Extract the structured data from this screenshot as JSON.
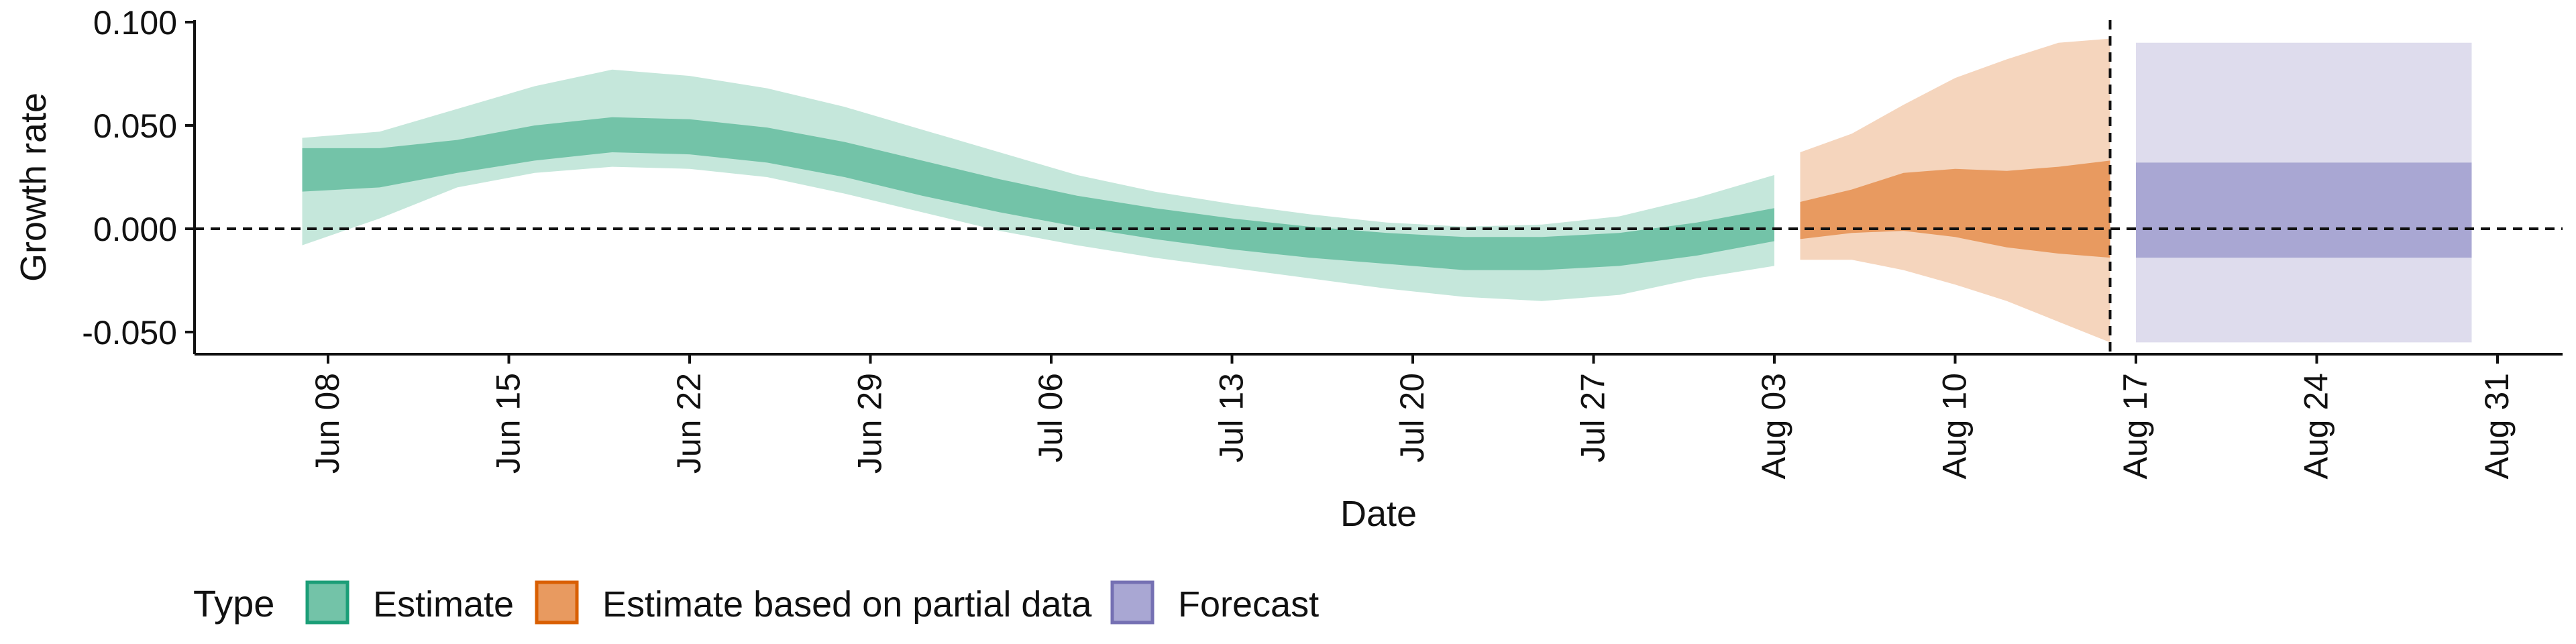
{
  "chart_data": {
    "type": "area",
    "title": "",
    "xlabel": "Date",
    "ylabel": "Growth rate",
    "ylim": [
      -0.062,
      0.1
    ],
    "xlim": [
      "2020-06-04",
      "2020-09-01"
    ],
    "y_ticks": [
      {
        "value": 0.1,
        "label": "0.100"
      },
      {
        "value": 0.05,
        "label": "0.050"
      },
      {
        "value": 0.0,
        "label": "0.000"
      },
      {
        "value": -0.05,
        "label": "-0.050"
      }
    ],
    "x_ticks": [
      {
        "date": "2020-06-08",
        "label": "Jun 08"
      },
      {
        "date": "2020-06-15",
        "label": "Jun 15"
      },
      {
        "date": "2020-06-22",
        "label": "Jun 22"
      },
      {
        "date": "2020-06-29",
        "label": "Jun 29"
      },
      {
        "date": "2020-07-06",
        "label": "Jul 06"
      },
      {
        "date": "2020-07-13",
        "label": "Jul 13"
      },
      {
        "date": "2020-07-20",
        "label": "Jul 20"
      },
      {
        "date": "2020-07-27",
        "label": "Jul 27"
      },
      {
        "date": "2020-08-03",
        "label": "Aug 03"
      },
      {
        "date": "2020-08-10",
        "label": "Aug 10"
      },
      {
        "date": "2020-08-17",
        "label": "Aug 17"
      },
      {
        "date": "2020-08-24",
        "label": "Aug 24"
      },
      {
        "date": "2020-08-31",
        "label": "Aug 31"
      }
    ],
    "reference_lines": {
      "horizontal_y": 0.0,
      "vertical_date": "2020-08-16"
    },
    "grid": false,
    "legend": {
      "title": "Type",
      "position": "bottom-left",
      "items": [
        {
          "label": "Estimate",
          "fill": "#73c3a8",
          "stroke": "#1b9e77"
        },
        {
          "label": "Estimate based on partial data",
          "fill": "#e89a60",
          "stroke": "#d95f02"
        },
        {
          "label": "Forecast",
          "fill": "#a9a7d3",
          "stroke": "#7570b3"
        }
      ]
    },
    "series": [
      {
        "type_label": "Estimate",
        "outer_color": "#c5e7db",
        "inner_color": "#73c3a8",
        "points": [
          {
            "date": "2020-06-07",
            "lo90": -0.008,
            "lo50": 0.018,
            "hi50": 0.039,
            "hi90": 0.044
          },
          {
            "date": "2020-06-10",
            "lo90": 0.005,
            "lo50": 0.02,
            "hi50": 0.039,
            "hi90": 0.047
          },
          {
            "date": "2020-06-13",
            "lo90": 0.02,
            "lo50": 0.027,
            "hi50": 0.043,
            "hi90": 0.058
          },
          {
            "date": "2020-06-16",
            "lo90": 0.027,
            "lo50": 0.033,
            "hi50": 0.05,
            "hi90": 0.069
          },
          {
            "date": "2020-06-19",
            "lo90": 0.03,
            "lo50": 0.037,
            "hi50": 0.054,
            "hi90": 0.077
          },
          {
            "date": "2020-06-22",
            "lo90": 0.029,
            "lo50": 0.036,
            "hi50": 0.053,
            "hi90": 0.074
          },
          {
            "date": "2020-06-25",
            "lo90": 0.025,
            "lo50": 0.032,
            "hi50": 0.049,
            "hi90": 0.068
          },
          {
            "date": "2020-06-28",
            "lo90": 0.017,
            "lo50": 0.025,
            "hi50": 0.042,
            "hi90": 0.059
          },
          {
            "date": "2020-07-01",
            "lo90": 0.008,
            "lo50": 0.016,
            "hi50": 0.033,
            "hi90": 0.048
          },
          {
            "date": "2020-07-04",
            "lo90": -0.001,
            "lo50": 0.008,
            "hi50": 0.024,
            "hi90": 0.037
          },
          {
            "date": "2020-07-07",
            "lo90": -0.008,
            "lo50": 0.001,
            "hi50": 0.016,
            "hi90": 0.026
          },
          {
            "date": "2020-07-10",
            "lo90": -0.014,
            "lo50": -0.005,
            "hi50": 0.01,
            "hi90": 0.018
          },
          {
            "date": "2020-07-13",
            "lo90": -0.019,
            "lo50": -0.01,
            "hi50": 0.005,
            "hi90": 0.012
          },
          {
            "date": "2020-07-16",
            "lo90": -0.024,
            "lo50": -0.014,
            "hi50": 0.001,
            "hi90": 0.007
          },
          {
            "date": "2020-07-19",
            "lo90": -0.029,
            "lo50": -0.017,
            "hi50": -0.002,
            "hi90": 0.003
          },
          {
            "date": "2020-07-22",
            "lo90": -0.033,
            "lo50": -0.02,
            "hi50": -0.004,
            "hi90": 0.001
          },
          {
            "date": "2020-07-25",
            "lo90": -0.035,
            "lo50": -0.02,
            "hi50": -0.004,
            "hi90": 0.002
          },
          {
            "date": "2020-07-28",
            "lo90": -0.032,
            "lo50": -0.018,
            "hi50": -0.002,
            "hi90": 0.006
          },
          {
            "date": "2020-07-31",
            "lo90": -0.024,
            "lo50": -0.013,
            "hi50": 0.003,
            "hi90": 0.015
          },
          {
            "date": "2020-08-03",
            "lo90": -0.018,
            "lo50": -0.006,
            "hi50": 0.01,
            "hi90": 0.026
          }
        ]
      },
      {
        "type_label": "Estimate based on partial data",
        "outer_color": "#f5d5bd",
        "inner_color": "#e89a60",
        "points": [
          {
            "date": "2020-08-04",
            "lo90": -0.015,
            "lo50": -0.005,
            "hi50": 0.013,
            "hi90": 0.037
          },
          {
            "date": "2020-08-06",
            "lo90": -0.015,
            "lo50": -0.002,
            "hi50": 0.019,
            "hi90": 0.046
          },
          {
            "date": "2020-08-08",
            "lo90": -0.02,
            "lo50": -0.001,
            "hi50": 0.027,
            "hi90": 0.06
          },
          {
            "date": "2020-08-10",
            "lo90": -0.027,
            "lo50": -0.004,
            "hi50": 0.029,
            "hi90": 0.073
          },
          {
            "date": "2020-08-12",
            "lo90": -0.035,
            "lo50": -0.009,
            "hi50": 0.028,
            "hi90": 0.082
          },
          {
            "date": "2020-08-14",
            "lo90": -0.045,
            "lo50": -0.012,
            "hi50": 0.03,
            "hi90": 0.09
          },
          {
            "date": "2020-08-16",
            "lo90": -0.055,
            "lo50": -0.014,
            "hi50": 0.033,
            "hi90": 0.092
          }
        ]
      },
      {
        "type_label": "Forecast",
        "outer_color": "#dedced",
        "inner_color": "#a9a7d3",
        "points": [
          {
            "date": "2020-08-17",
            "lo90": -0.055,
            "lo50": -0.014,
            "hi50": 0.032,
            "hi90": 0.09
          },
          {
            "date": "2020-08-30",
            "lo90": -0.055,
            "lo50": -0.014,
            "hi50": 0.032,
            "hi90": 0.09
          }
        ]
      }
    ]
  }
}
